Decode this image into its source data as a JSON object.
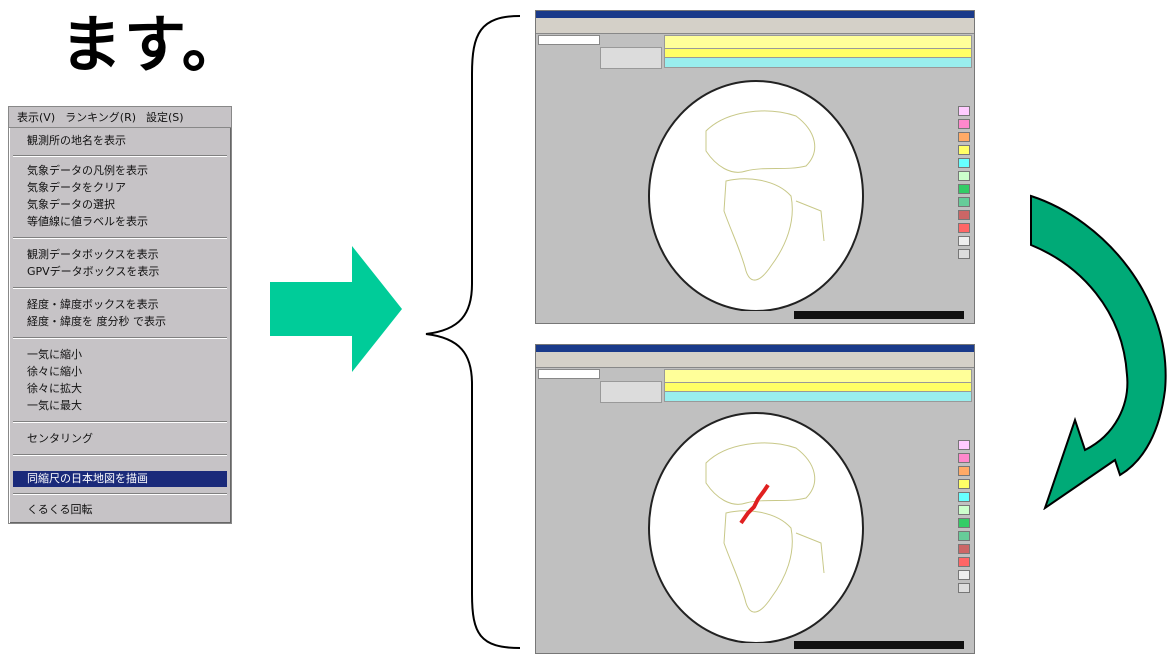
{
  "heading": "ます。",
  "menu": {
    "menubar": [
      "表示(V)",
      "ランキング(R)",
      "設定(S)"
    ],
    "items": [
      "観測所の地名を表示",
      "気象データの凡例を表示",
      "気象データをクリア",
      "気象データの選択",
      "等値線に値ラベルを表示",
      "観測データボックスを表示",
      "GPVデータボックスを表示",
      "経度・緯度ボックスを表示",
      "経度・緯度を 度分秒 で表示",
      "一気に縮小",
      "徐々に縮小",
      "徐々に拡大",
      "一気に最大",
      "センタリング",
      "同縮尺の日本地図を描画",
      "くるくる回転"
    ],
    "highlighted_index": 14
  },
  "colors": {
    "arrow_green": "#00cc99",
    "curved_arrow_green": "#00aa77",
    "menu_highlight": "#1a2a7a",
    "overlay_red": "#e02020"
  },
  "icons": [
    "right-arrow-icon",
    "curved-arrow-icon",
    "brace-icon",
    "globe-icon"
  ]
}
